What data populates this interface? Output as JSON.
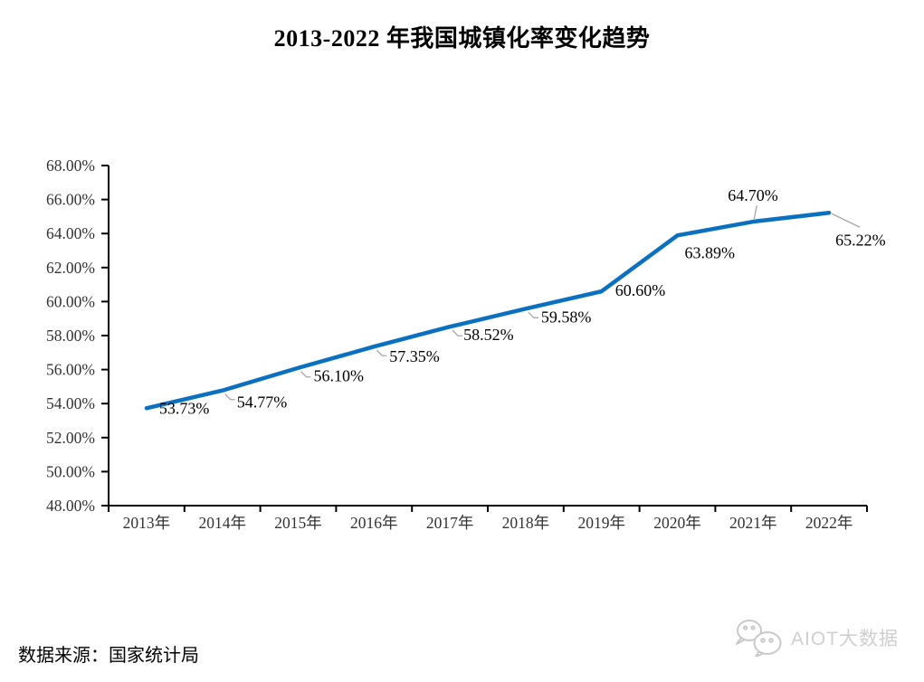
{
  "page": {
    "source_note": "数据来源：国家统计局",
    "watermark": {
      "icon": "wechat-icon",
      "label": "AIOT大数据",
      "color": "#cfcfcf"
    }
  },
  "chart_data": {
    "type": "line",
    "title": "2013-2022 年我国城镇化率变化趋势",
    "categories": [
      "2013年",
      "2014年",
      "2015年",
      "2016年",
      "2017年",
      "2018年",
      "2019年",
      "2020年",
      "2021年",
      "2022年"
    ],
    "values": [
      53.73,
      54.77,
      56.1,
      57.35,
      58.52,
      59.58,
      60.6,
      63.89,
      64.7,
      65.22
    ],
    "data_labels": [
      "53.73%",
      "54.77%",
      "56.10%",
      "57.35%",
      "58.52%",
      "59.58%",
      "60.60%",
      "63.89%",
      "64.70%",
      "65.22%"
    ],
    "y_tick_labels": [
      "48.00%",
      "50.00%",
      "52.00%",
      "54.00%",
      "56.00%",
      "58.00%",
      "60.00%",
      "62.00%",
      "64.00%",
      "66.00%",
      "68.00%"
    ],
    "ylim": [
      48,
      68
    ],
    "y_tick_step": 2,
    "xlabel": "",
    "ylabel": "",
    "grid": false,
    "legend": "none",
    "line_color": "#0b70c0",
    "axis_color": "#000000",
    "tick_label_color": "#333333",
    "label_color": "#000000",
    "leader_color": "#a6a6a6"
  }
}
